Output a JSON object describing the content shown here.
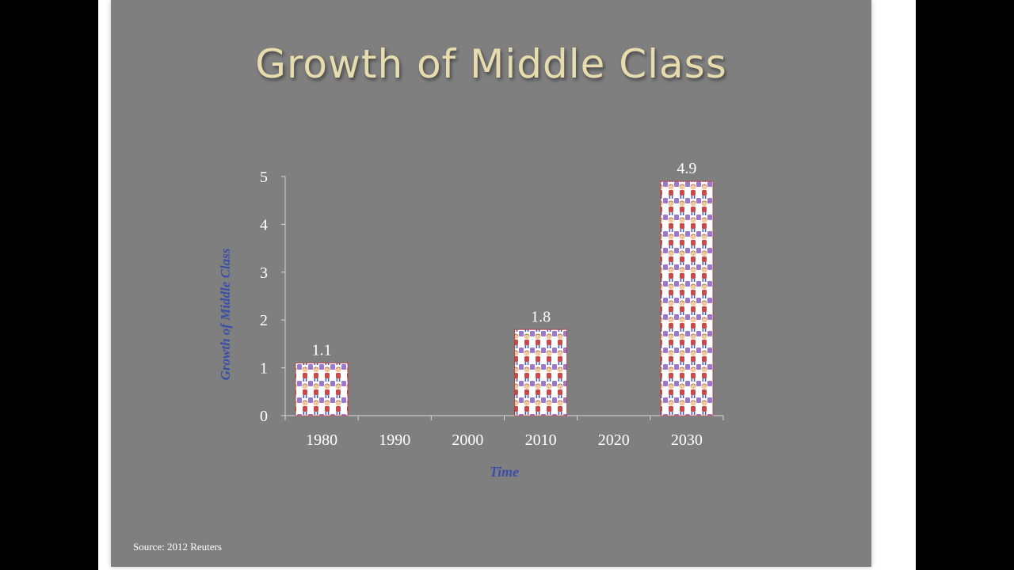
{
  "slide": {
    "title": "Growth of Middle Class",
    "source": "Source: 2012 Reuters"
  },
  "colors": {
    "background": "#7f7f7f",
    "title": "#e6dcae",
    "axis_title": "#3b4ea8",
    "bar_outline": "#c62828"
  },
  "chart_data": {
    "type": "bar",
    "categories": [
      "1980",
      "1990",
      "2000",
      "2010",
      "2020",
      "2030"
    ],
    "values": [
      1.1,
      null,
      null,
      1.8,
      null,
      4.9
    ],
    "data_labels": [
      "1.1",
      "",
      "",
      "1.8",
      "",
      "4.9"
    ],
    "xlabel": "Time",
    "ylabel": "Growth of Middle Class",
    "ylim": [
      0,
      5
    ],
    "yticks": [
      "0",
      "1",
      "2",
      "3",
      "4",
      "5"
    ],
    "grid": false,
    "legend": "none",
    "bar_fill": "pictogram-people-icon"
  }
}
